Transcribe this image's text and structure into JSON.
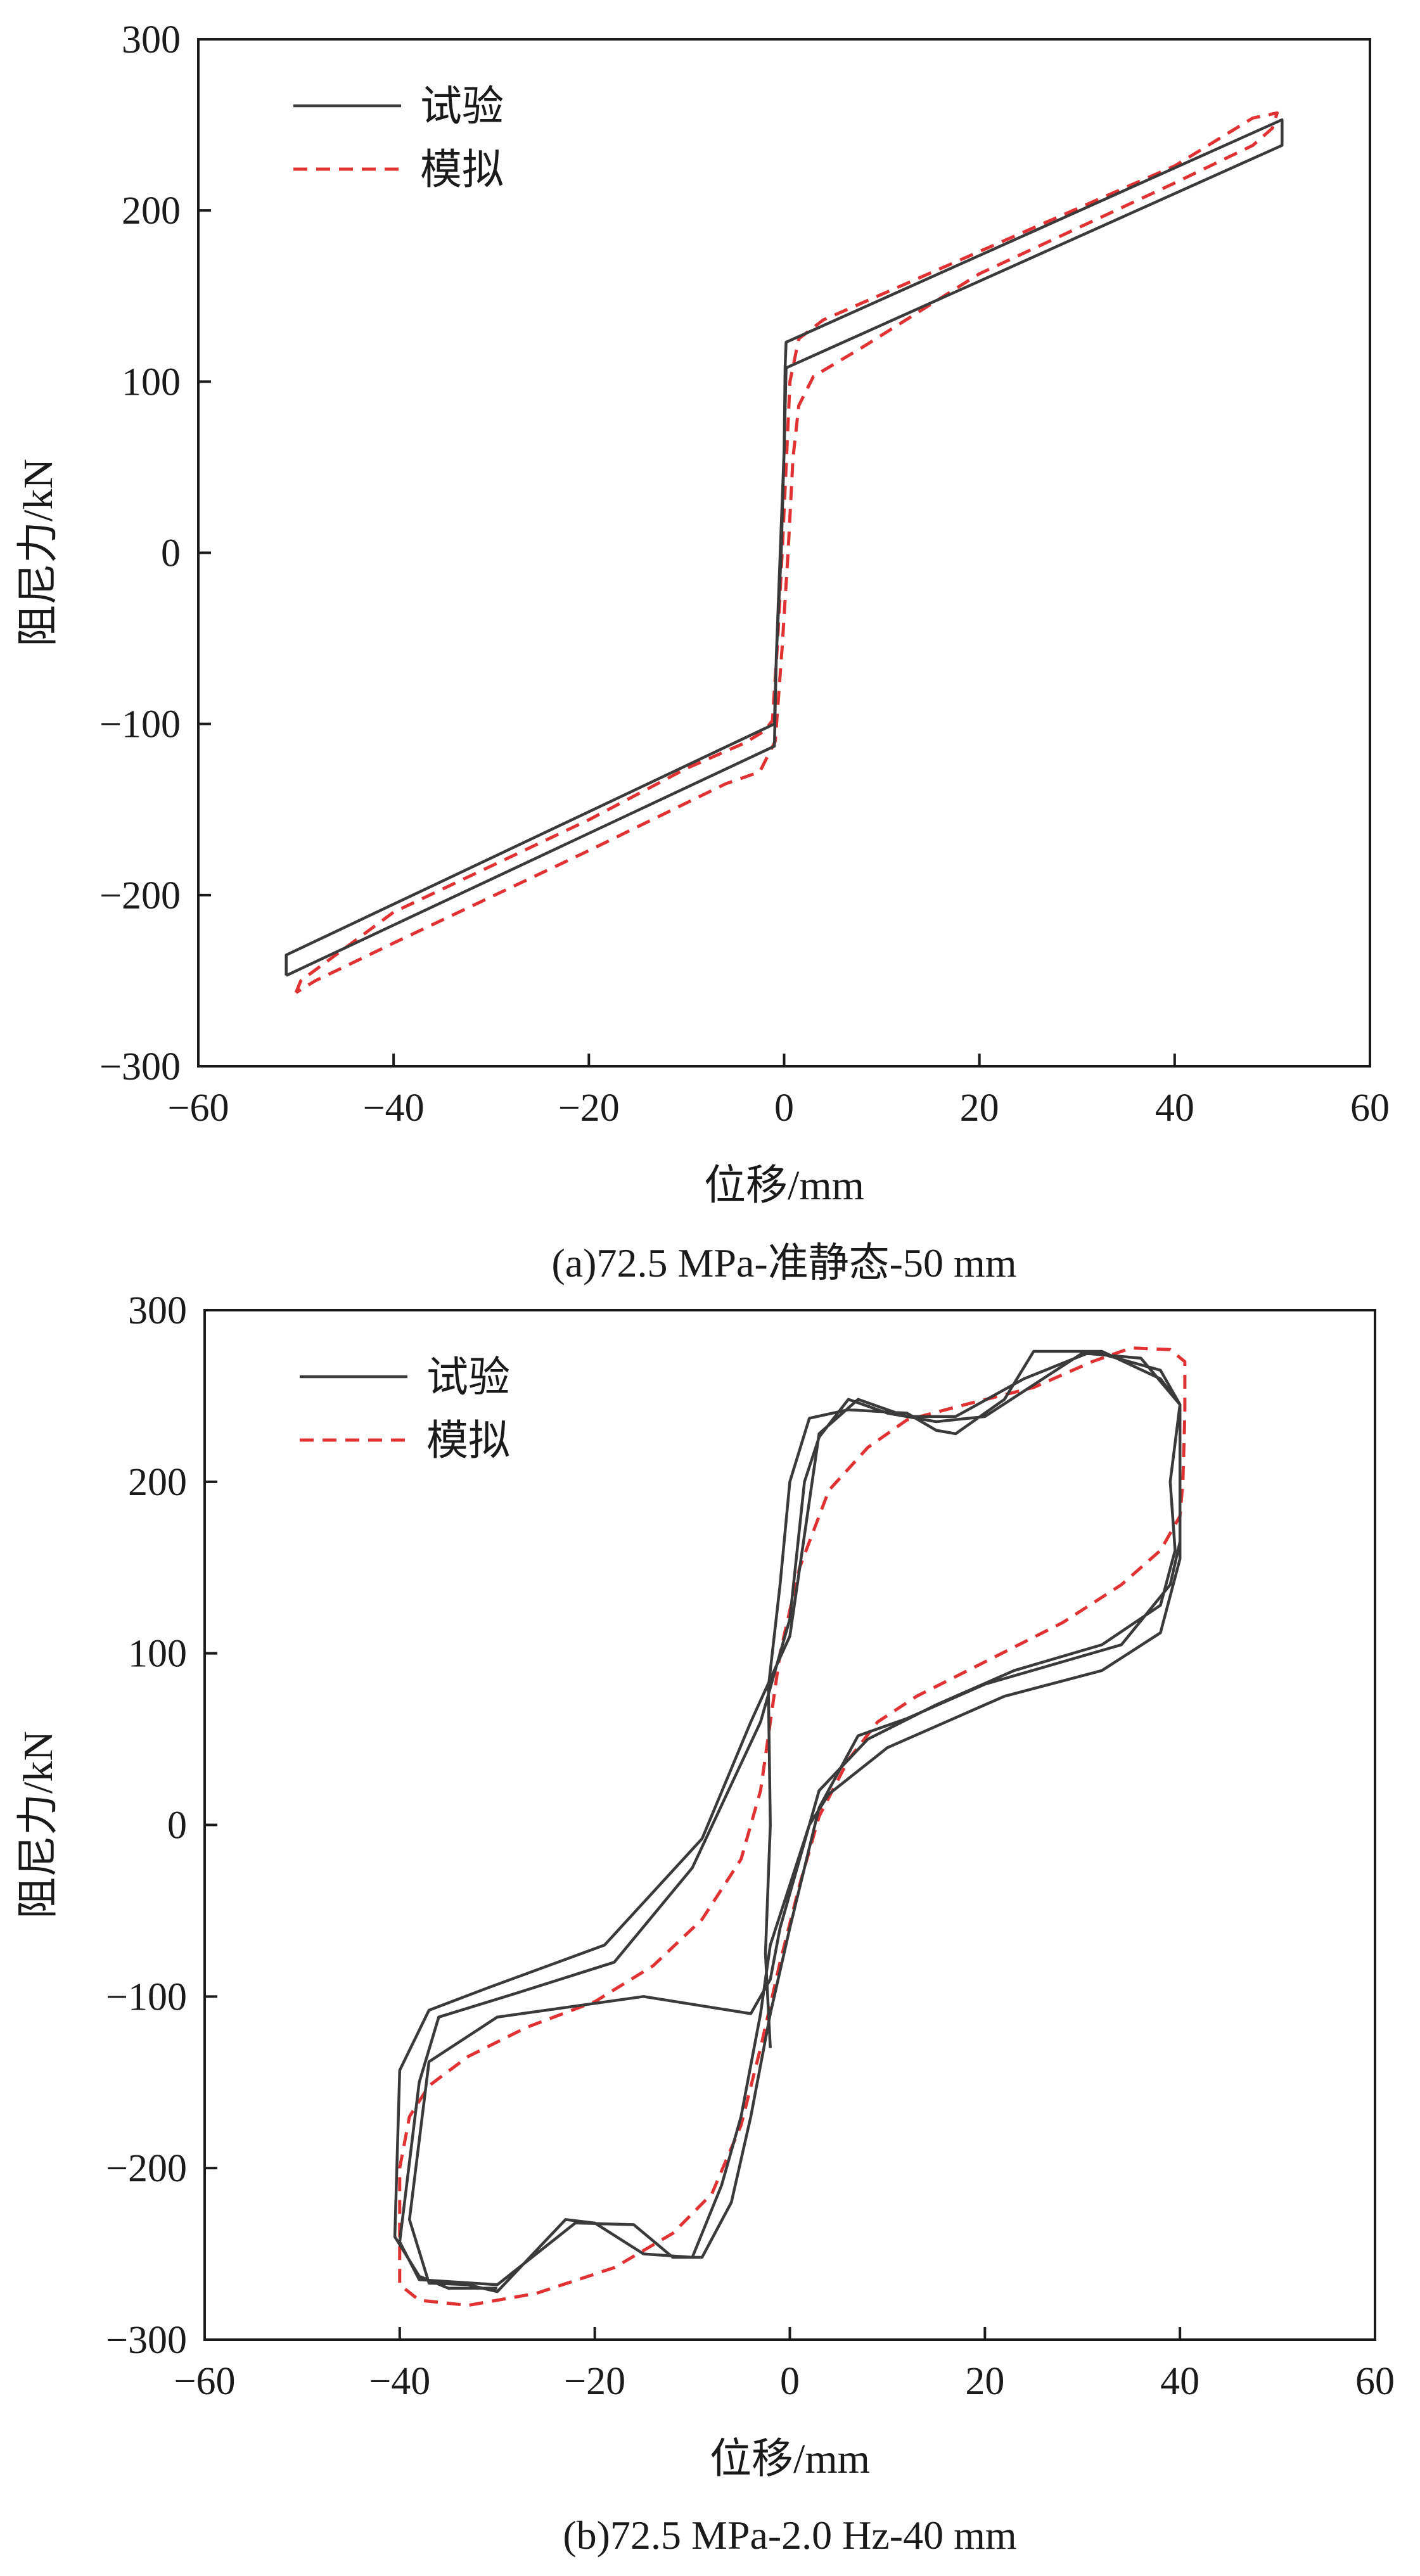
{
  "colors": {
    "test": "#3a3a3a",
    "sim": "#e03232",
    "axis": "#1a1a1a"
  },
  "chart_data": [
    {
      "type": "line",
      "caption": "(a)72.5 MPa-准静态-50 mm",
      "xlabel": "位移/mm",
      "ylabel": "阻尼力/kN",
      "xlim": [
        -60,
        60
      ],
      "ylim": [
        -300,
        300
      ],
      "xticks": [
        -60,
        -40,
        -20,
        0,
        20,
        40,
        60
      ],
      "yticks": [
        -300,
        -200,
        -100,
        0,
        100,
        200,
        300
      ],
      "xtick_labels": [
        "−60",
        "−40",
        "−20",
        "0",
        "20",
        "40",
        "60"
      ],
      "ytick_labels": [
        "−300",
        "−200",
        "−100",
        "0",
        "100",
        "200",
        "300"
      ],
      "legend": {
        "position": "top-left",
        "entries": [
          "试验",
          "模拟"
        ]
      },
      "series": [
        {
          "name": "试验",
          "style": "solid",
          "points": [
            [
              -51,
              -247
            ],
            [
              -51,
              -235
            ],
            [
              -1,
              -100
            ],
            [
              -0.8,
              -60
            ],
            [
              -0.3,
              0
            ],
            [
              0,
              60
            ],
            [
              0.1,
              108
            ],
            [
              0.2,
              123
            ],
            [
              51,
              253
            ],
            [
              51,
              238
            ],
            [
              0.2,
              108
            ],
            [
              0,
              60
            ],
            [
              -0.4,
              0
            ],
            [
              -0.8,
              -60
            ],
            [
              -1,
              -113
            ],
            [
              -51,
              -247
            ]
          ]
        },
        {
          "name": "模拟",
          "style": "dashed",
          "points": [
            [
              -50,
              -257
            ],
            [
              -49.5,
              -250
            ],
            [
              -40,
              -210
            ],
            [
              -20,
              -156
            ],
            [
              -10,
              -126
            ],
            [
              -4,
              -111
            ],
            [
              -2,
              -104
            ],
            [
              -1.2,
              -98
            ],
            [
              -0.7,
              -55
            ],
            [
              -0.2,
              0
            ],
            [
              0.2,
              50
            ],
            [
              0.6,
              100
            ],
            [
              1.5,
              125
            ],
            [
              4,
              136
            ],
            [
              20,
              176
            ],
            [
              40,
              226
            ],
            [
              48,
              254
            ],
            [
              50.5,
              257
            ],
            [
              50,
              248
            ],
            [
              48,
              238
            ],
            [
              40,
              216
            ],
            [
              20,
              163
            ],
            [
              8,
              120
            ],
            [
              3,
              103
            ],
            [
              1.5,
              86
            ],
            [
              0.9,
              55
            ],
            [
              0.4,
              0
            ],
            [
              -0.2,
              -55
            ],
            [
              -0.9,
              -110
            ],
            [
              -2.5,
              -128
            ],
            [
              -6,
              -135
            ],
            [
              -20,
              -174
            ],
            [
              -40,
              -228
            ],
            [
              -48,
              -250
            ],
            [
              -50,
              -257
            ]
          ]
        }
      ]
    },
    {
      "type": "line",
      "caption": "(b)72.5 MPa-2.0 Hz-40 mm",
      "xlabel": "位移/mm",
      "ylabel": "阻尼力/kN",
      "xlim": [
        -60,
        60
      ],
      "ylim": [
        -300,
        300
      ],
      "xticks": [
        -60,
        -40,
        -20,
        0,
        20,
        40,
        60
      ],
      "yticks": [
        -300,
        -200,
        -100,
        0,
        100,
        200,
        300
      ],
      "xtick_labels": [
        "−60",
        "−40",
        "−20",
        "0",
        "20",
        "40",
        "60"
      ],
      "ytick_labels": [
        "−300",
        "−200",
        "−100",
        "0",
        "100",
        "200",
        "300"
      ],
      "legend": {
        "position": "top-left",
        "entries": [
          "试验",
          "模拟"
        ]
      },
      "series": [
        {
          "name": "试验",
          "style": "solid",
          "points": [
            [
              -2,
              -130
            ],
            [
              -2.5,
              -75
            ],
            [
              -2,
              0
            ],
            [
              -2.2,
              80
            ],
            [
              -1,
              140
            ],
            [
              0,
              200
            ],
            [
              2,
              237
            ],
            [
              6,
              242
            ],
            [
              12,
              240
            ],
            [
              15,
              230
            ],
            [
              17,
              228
            ],
            [
              22,
              248
            ],
            [
              25,
              276
            ],
            [
              32,
              276
            ],
            [
              38,
              260
            ],
            [
              40,
              245
            ],
            [
              39,
              200
            ],
            [
              39.5,
              160
            ],
            [
              38,
              128
            ],
            [
              32,
              105
            ],
            [
              23,
              90
            ],
            [
              15,
              70
            ],
            [
              8,
              50
            ],
            [
              3,
              20
            ],
            [
              1,
              -20
            ],
            [
              -1,
              -60
            ],
            [
              -2,
              -90
            ],
            [
              -4,
              -110
            ],
            [
              -15,
              -100
            ],
            [
              -30,
              -112
            ],
            [
              -37,
              -138
            ],
            [
              -39,
              -230
            ],
            [
              -37,
              -267
            ],
            [
              -33,
              -268
            ],
            [
              -30,
              -272
            ],
            [
              -23,
              -230
            ],
            [
              -20,
              -232
            ],
            [
              -15,
              -250
            ],
            [
              -10,
              -252
            ],
            [
              -7,
              -210
            ],
            [
              -5,
              -170
            ],
            [
              -3,
              -110
            ],
            [
              -2,
              -70
            ],
            [
              0,
              -35
            ],
            [
              2,
              0
            ],
            [
              4,
              18
            ],
            [
              10,
              45
            ],
            [
              22,
              75
            ],
            [
              32,
              90
            ],
            [
              38,
              112
            ],
            [
              40,
              155
            ],
            [
              40,
              245
            ],
            [
              36,
              272
            ],
            [
              30,
              275
            ],
            [
              20,
              238
            ],
            [
              15,
              235
            ],
            [
              10,
              240
            ],
            [
              6,
              248
            ],
            [
              3,
              226
            ],
            [
              1.5,
              200
            ],
            [
              0,
              120
            ],
            [
              -3,
              60
            ],
            [
              -10,
              -25
            ],
            [
              -18,
              -80
            ],
            [
              -28,
              -98
            ],
            [
              -36,
              -112
            ],
            [
              -38,
              -150
            ],
            [
              -40,
              -243
            ],
            [
              -38,
              -265
            ],
            [
              -30,
              -268
            ],
            [
              -22,
              -232
            ],
            [
              -16,
              -233
            ],
            [
              -12,
              -252
            ],
            [
              -9,
              -252
            ],
            [
              -6,
              -220
            ],
            [
              -4,
              -170
            ],
            [
              -2,
              -110
            ],
            [
              0,
              -60
            ],
            [
              3,
              10
            ],
            [
              7,
              52
            ],
            [
              12,
              62
            ],
            [
              20,
              82
            ],
            [
              34,
              105
            ],
            [
              39,
              140
            ],
            [
              40,
              165
            ],
            [
              40,
              245
            ],
            [
              38,
              265
            ],
            [
              31,
              276
            ],
            [
              24,
              260
            ],
            [
              17,
              238
            ],
            [
              12,
              238
            ],
            [
              7,
              248
            ],
            [
              3,
              228
            ],
            [
              0,
              110
            ],
            [
              -4,
              60
            ],
            [
              -9,
              -8
            ],
            [
              -19,
              -70
            ],
            [
              -31,
              -95
            ],
            [
              -37,
              -108
            ],
            [
              -40,
              -143
            ],
            [
              -40.5,
              -240
            ],
            [
              -38,
              -263
            ],
            [
              -35,
              -270
            ],
            [
              -30,
              -270
            ]
          ]
        },
        {
          "name": "模拟",
          "style": "dashed",
          "points": [
            [
              -40,
              -240
            ],
            [
              -40,
              -200
            ],
            [
              -39,
              -170
            ],
            [
              -37,
              -152
            ],
            [
              -33,
              -135
            ],
            [
              -27,
              -118
            ],
            [
              -20,
              -103
            ],
            [
              -14,
              -82
            ],
            [
              -9,
              -55
            ],
            [
              -5,
              -20
            ],
            [
              -3,
              20
            ],
            [
              -2,
              60
            ],
            [
              -1,
              100
            ],
            [
              1,
              150
            ],
            [
              4,
              195
            ],
            [
              8,
              220
            ],
            [
              12,
              236
            ],
            [
              18,
              245
            ],
            [
              25,
              255
            ],
            [
              31,
              270
            ],
            [
              35,
              278
            ],
            [
              39,
              277
            ],
            [
              40.5,
              270
            ],
            [
              40.5,
              240
            ],
            [
              40.3,
              200
            ],
            [
              40,
              180
            ],
            [
              38,
              160
            ],
            [
              34,
              140
            ],
            [
              28,
              118
            ],
            [
              20,
              95
            ],
            [
              13,
              75
            ],
            [
              9,
              60
            ],
            [
              6,
              38
            ],
            [
              3,
              5
            ],
            [
              1,
              -35
            ],
            [
              -1,
              -80
            ],
            [
              -3,
              -130
            ],
            [
              -5,
              -175
            ],
            [
              -8,
              -215
            ],
            [
              -12,
              -238
            ],
            [
              -18,
              -258
            ],
            [
              -26,
              -273
            ],
            [
              -33,
              -280
            ],
            [
              -38,
              -277
            ],
            [
              -40,
              -268
            ],
            [
              -40,
              -240
            ]
          ]
        }
      ]
    }
  ]
}
